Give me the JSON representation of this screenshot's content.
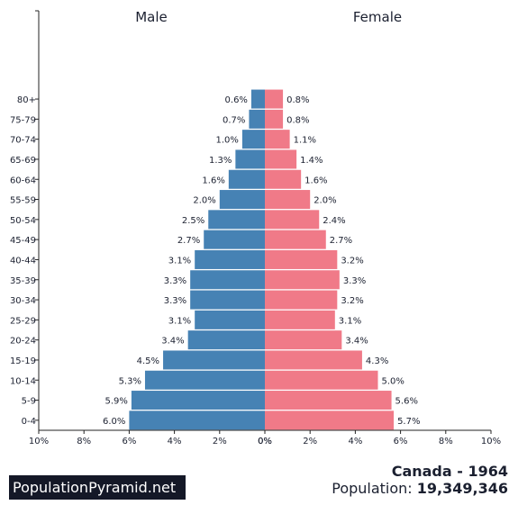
{
  "chart_data": {
    "type": "bar",
    "orientation": "horizontal-pyramid",
    "categories": [
      "0-4",
      "5-9",
      "10-14",
      "15-19",
      "20-24",
      "25-29",
      "30-34",
      "35-39",
      "40-44",
      "45-49",
      "50-54",
      "55-59",
      "60-64",
      "65-69",
      "70-74",
      "75-79",
      "80+"
    ],
    "series": [
      {
        "name": "Male",
        "values": [
          6.0,
          5.9,
          5.3,
          4.5,
          3.4,
          3.1,
          3.3,
          3.3,
          3.1,
          2.7,
          2.5,
          2.0,
          1.6,
          1.3,
          1.0,
          0.7,
          0.6
        ],
        "labels": [
          "6.0%",
          "5.9%",
          "5.3%",
          "4.5%",
          "3.4%",
          "3.1%",
          "3.3%",
          "3.3%",
          "3.1%",
          "2.7%",
          "2.5%",
          "2.0%",
          "1.6%",
          "1.3%",
          "1.0%",
          "0.7%",
          "0.6%"
        ]
      },
      {
        "name": "Female",
        "values": [
          5.7,
          5.6,
          5.0,
          4.3,
          3.4,
          3.1,
          3.2,
          3.3,
          3.2,
          2.7,
          2.4,
          2.0,
          1.6,
          1.4,
          1.1,
          0.8,
          0.8
        ],
        "labels": [
          "5.7%",
          "5.6%",
          "5.0%",
          "4.3%",
          "3.4%",
          "3.1%",
          "3.2%",
          "3.3%",
          "3.2%",
          "2.7%",
          "2.4%",
          "2.0%",
          "1.6%",
          "1.4%",
          "1.1%",
          "0.8%",
          "0.8%"
        ]
      }
    ],
    "xlim": [
      0,
      10
    ],
    "x_ticks_left": [
      "10%",
      "8%",
      "6%",
      "4%",
      "2%",
      "0%"
    ],
    "x_ticks_right": [
      "0%",
      "2%",
      "4%",
      "6%",
      "8%",
      "10%"
    ],
    "colors": {
      "male": "#4682b4",
      "female": "#f07a88"
    },
    "grid": false
  },
  "footer": {
    "brand": "PopulationPyramid.net",
    "country_year": "Canada - 1964",
    "population_label": "Population:",
    "population_value": "19,349,346"
  }
}
